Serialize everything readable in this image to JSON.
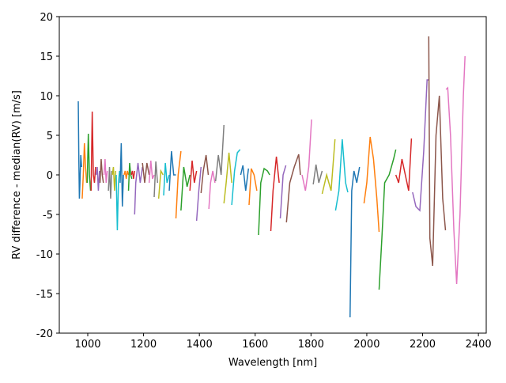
{
  "chart_data": {
    "type": "line",
    "xlabel": "Wavelength [nm]",
    "ylabel": "RV difference - median(RV) [m/s]",
    "xlim": [
      898,
      2428
    ],
    "ylim": [
      -20,
      20
    ],
    "xticks": [
      1000,
      1200,
      1400,
      1600,
      1800,
      2000,
      2200,
      2400
    ],
    "yticks": [
      -20,
      -15,
      -10,
      -5,
      0,
      5,
      10,
      15,
      20
    ],
    "series": [
      {
        "color": "#1f77b4",
        "x": [
          966,
          968,
          970,
          972,
          975,
          978
        ],
        "values": [
          9.3,
          2,
          -3,
          -1,
          2.5,
          1
        ]
      },
      {
        "color": "#ff7f0e",
        "x": [
          980,
          984,
          988,
          992,
          996
        ],
        "values": [
          -3,
          0,
          4,
          1,
          -1
        ]
      },
      {
        "color": "#2ca02c",
        "x": [
          998,
          1002,
          1006,
          1010
        ],
        "values": [
          -1,
          5.2,
          0,
          -2
        ]
      },
      {
        "color": "#d62728",
        "x": [
          1012,
          1016,
          1020,
          1024,
          1028
        ],
        "values": [
          -2,
          8,
          0,
          -1,
          1
        ]
      },
      {
        "color": "#9467bd",
        "x": [
          1030,
          1034,
          1038,
          1042
        ],
        "values": [
          0,
          1,
          -2,
          0.5
        ]
      },
      {
        "color": "#8c564b",
        "x": [
          1044,
          1048,
          1052,
          1056
        ],
        "values": [
          -1,
          2,
          0,
          -1
        ]
      },
      {
        "color": "#e377c2",
        "x": [
          1058,
          1062,
          1066,
          1070
        ],
        "values": [
          0,
          2,
          -1,
          0.5
        ]
      },
      {
        "color": "#7f7f7f",
        "x": [
          1074,
          1078,
          1082,
          1086
        ],
        "values": [
          -2,
          1,
          -3,
          0.5
        ]
      },
      {
        "color": "#bcbd22",
        "x": [
          1088,
          1092,
          1096,
          1100
        ],
        "values": [
          0,
          1,
          -2,
          0.5
        ]
      },
      {
        "color": "#17becf",
        "x": [
          1102,
          1106,
          1110,
          1114
        ],
        "values": [
          0,
          -7,
          -1,
          0.5
        ]
      },
      {
        "color": "#1f77b4",
        "x": [
          1116,
          1120,
          1124,
          1128
        ],
        "values": [
          -1,
          4,
          -4,
          0
        ]
      },
      {
        "color": "#ff7f0e",
        "x": [
          1130,
          1134,
          1138,
          1142,
          1146
        ],
        "values": [
          0,
          0.5,
          -0.5,
          0.5,
          0
        ]
      },
      {
        "color": "#2ca02c",
        "x": [
          1146,
          1150,
          1154,
          1158
        ],
        "values": [
          -2,
          1.5,
          0,
          -0.5
        ]
      },
      {
        "color": "#d62728",
        "x": [
          1156,
          1160,
          1164,
          1168
        ],
        "values": [
          0,
          0.5,
          -0.5,
          0.5
        ]
      },
      {
        "color": "#9467bd",
        "x": [
          1168,
          1172,
          1180,
          1188,
          1196
        ],
        "values": [
          -5,
          -1,
          1.5,
          -1,
          1
        ]
      },
      {
        "color": "#8c564b",
        "x": [
          1196,
          1204,
          1212,
          1220
        ],
        "values": [
          1.5,
          -1,
          1.5,
          0
        ]
      },
      {
        "color": "#e377c2",
        "x": [
          1220,
          1226,
          1232,
          1238
        ],
        "values": [
          -1,
          1.8,
          -0.5,
          0
        ]
      },
      {
        "color": "#7f7f7f",
        "x": [
          1238,
          1244,
          1250
        ],
        "values": [
          -2.8,
          1.7,
          -1
        ]
      },
      {
        "color": "#bcbd22",
        "x": [
          1254,
          1262,
          1270
        ],
        "values": [
          -3,
          0.5,
          0
        ]
      },
      {
        "color": "#17becf",
        "x": [
          1272,
          1278,
          1284,
          1292
        ],
        "values": [
          -2.6,
          1.5,
          -1,
          0
        ]
      },
      {
        "color": "#1f77b4",
        "x": [
          1292,
          1300,
          1308,
          1316
        ],
        "values": [
          -2,
          3,
          0,
          0
        ]
      },
      {
        "color": "#ff7f0e",
        "x": [
          1316,
          1324,
          1334
        ],
        "values": [
          -5.5,
          0,
          3
        ]
      },
      {
        "color": "#2ca02c",
        "x": [
          1334,
          1344,
          1356,
          1366
        ],
        "values": [
          -4.5,
          1,
          -1.5,
          0
        ]
      },
      {
        "color": "#d62728",
        "x": [
          1366,
          1374,
          1382,
          1390
        ],
        "values": [
          -2,
          1.8,
          -1,
          0.5
        ]
      },
      {
        "color": "#9467bd",
        "x": [
          1390,
          1398,
          1406
        ],
        "values": [
          -5.8,
          -2,
          1
        ]
      },
      {
        "color": "#8c564b",
        "x": [
          1406,
          1414,
          1424,
          1432
        ],
        "values": [
          -2.3,
          0.5,
          2.5,
          0
        ]
      },
      {
        "color": "#e377c2",
        "x": [
          1434,
          1440,
          1448,
          1456
        ],
        "values": [
          -4.3,
          -1,
          0.5,
          -1
        ]
      },
      {
        "color": "#7f7f7f",
        "x": [
          1458,
          1468,
          1478,
          1488
        ],
        "values": [
          -0.8,
          2.5,
          0,
          6.3
        ]
      },
      {
        "color": "#bcbd22",
        "x": [
          1488,
          1496,
          1506,
          1516
        ],
        "values": [
          -3.6,
          -1,
          2.8,
          -1
        ]
      },
      {
        "color": "#17becf",
        "x": [
          1516,
          1526,
          1536,
          1546
        ],
        "values": [
          -3.8,
          0.5,
          2.8,
          3.2
        ]
      },
      {
        "color": "#1f77b4",
        "x": [
          1548,
          1556,
          1566,
          1576
        ],
        "values": [
          0,
          1.2,
          -2,
          0.8
        ]
      },
      {
        "color": "#ff7f0e",
        "x": [
          1578,
          1586,
          1596,
          1606
        ],
        "values": [
          -3.8,
          0.8,
          0,
          -2
        ]
      },
      {
        "color": "#2ca02c",
        "x": [
          1612,
          1620,
          1632,
          1644,
          1652
        ],
        "values": [
          -7.6,
          -1,
          0.8,
          0.5,
          0
        ]
      },
      {
        "color": "#d62728",
        "x": [
          1656,
          1664,
          1676,
          1686
        ],
        "values": [
          -7.1,
          -2,
          2.3,
          -1
        ]
      },
      {
        "color": "#9467bd",
        "x": [
          1690,
          1700,
          1710
        ],
        "values": [
          -5.5,
          0,
          1.2
        ]
      },
      {
        "color": "#8c564b",
        "x": [
          1712,
          1724,
          1740,
          1756,
          1762
        ],
        "values": [
          -6,
          -1,
          1,
          2.6,
          0
        ]
      },
      {
        "color": "#e377c2",
        "x": [
          1768,
          1780,
          1792,
          1802
        ],
        "values": [
          0,
          -2,
          1,
          7
        ]
      },
      {
        "color": "#7f7f7f",
        "x": [
          1808,
          1818,
          1828,
          1840
        ],
        "values": [
          -1.2,
          1.3,
          -1,
          0.5
        ]
      },
      {
        "color": "#bcbd22",
        "x": [
          1840,
          1856,
          1872,
          1886
        ],
        "values": [
          -2.4,
          0,
          -2,
          4.5
        ]
      },
      {
        "color": "#17becf",
        "x": [
          1888,
          1900,
          1912,
          1924,
          1932
        ],
        "values": [
          -4.5,
          -2,
          4.5,
          -1,
          -2.2
        ]
      },
      {
        "color": "#1f77b4",
        "x": [
          1940,
          1946,
          1954,
          1964,
          1974
        ],
        "values": [
          -18,
          -2,
          0.5,
          -1,
          1
        ]
      },
      {
        "color": "#ff7f0e",
        "x": [
          1990,
          2000,
          2012,
          2024,
          2036,
          2044
        ],
        "values": [
          -3.6,
          -1,
          4.8,
          2,
          -3,
          -7.2
        ]
      },
      {
        "color": "#2ca02c",
        "x": [
          2044,
          2054,
          2064,
          2080,
          2096,
          2104
        ],
        "values": [
          -14.5,
          -8,
          -1,
          0,
          2,
          3.2
        ]
      },
      {
        "color": "#d62728",
        "x": [
          2104,
          2114,
          2126,
          2138,
          2150,
          2160
        ],
        "values": [
          0,
          -1,
          2,
          0,
          -2,
          4.6
        ]
      },
      {
        "color": "#9467bd",
        "x": [
          2164,
          2176,
          2190,
          2204,
          2216,
          2222
        ],
        "values": [
          -2.2,
          -4,
          -4.5,
          3,
          12,
          12
        ]
      },
      {
        "color": "#8c564b",
        "x": [
          2222,
          2226,
          2236,
          2248,
          2260,
          2272,
          2282
        ],
        "values": [
          17.5,
          -8,
          -11.5,
          5,
          10,
          -3,
          -7
        ]
      },
      {
        "color": "#e377c2",
        "x": [
          2284,
          2290,
          2300,
          2312,
          2322,
          2334,
          2346,
          2352
        ],
        "values": [
          10.8,
          11,
          5,
          -7,
          -13.8,
          -5,
          10,
          15
        ]
      }
    ]
  }
}
